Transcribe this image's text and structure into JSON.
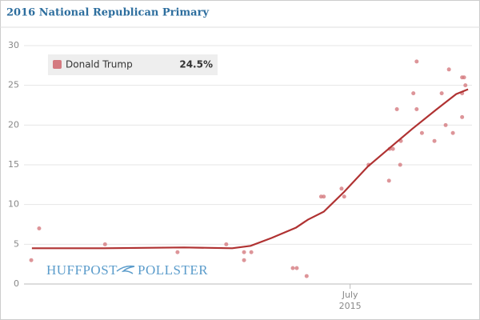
{
  "chart_data": {
    "type": "scatter-trend",
    "title": "2016 National Republican Primary",
    "series": [
      {
        "name": "Donald Trump",
        "color": "#b03232",
        "point_color": "#d47a80",
        "x": [
          2.16,
          2.28,
          3.28,
          4.38,
          5.12,
          5.39,
          5.39,
          5.5,
          6.13,
          6.19,
          6.34,
          6.56,
          6.6,
          6.87,
          6.91,
          7.28,
          7.59,
          7.6,
          7.65,
          7.71,
          7.76,
          7.77,
          7.96,
          8.01,
          8.01,
          8.09,
          8.28,
          8.39,
          8.45,
          8.5,
          8.56,
          8.7,
          8.73,
          8.7,
          8.7,
          8.75
        ],
        "values": [
          3,
          7,
          5,
          4,
          5,
          3,
          4,
          4,
          2,
          2,
          1,
          11,
          11,
          12,
          11,
          15,
          13,
          17,
          17,
          22,
          15,
          18,
          24,
          28,
          22,
          19,
          18,
          24,
          20,
          27,
          19,
          26,
          26,
          21,
          24,
          25
        ],
        "trend_x": [
          2.17,
          3.26,
          4.48,
          5.21,
          5.49,
          5.81,
          6.18,
          6.36,
          6.6,
          6.91,
          7.27,
          7.64,
          7.94,
          8.3,
          8.61,
          8.79
        ],
        "trend_values": [
          4.5,
          4.5,
          4.6,
          4.5,
          4.8,
          5.8,
          7.1,
          8.1,
          9.1,
          11.6,
          14.8,
          17.4,
          19.5,
          21.9,
          23.9,
          24.5
        ],
        "latest": 24.5,
        "latest_label": "24.5%"
      }
    ],
    "xlim": [
      2.05,
      8.85
    ],
    "xticks": [
      {
        "value": 7,
        "label": "July"
      }
    ],
    "x_year_label": "2015",
    "ylim": [
      0,
      30
    ],
    "yticks": [
      0,
      5,
      10,
      15,
      20,
      25,
      30
    ],
    "grid": true,
    "logo": [
      "HUFFPOST",
      "POLLSTER"
    ]
  }
}
